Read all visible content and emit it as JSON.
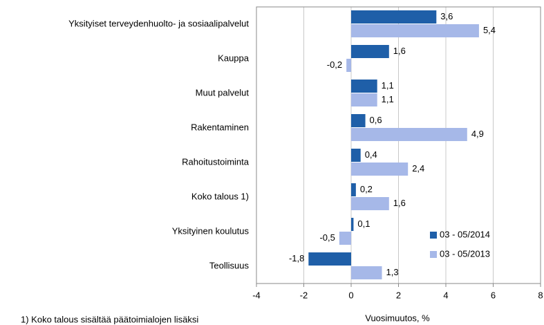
{
  "chart_data": {
    "type": "hbar",
    "categories": [
      "Yksityiset terveydenhuolto- ja sosiaalipalvelut",
      "Kauppa",
      "Muut palvelut",
      "Rakentaminen",
      "Rahoitustoiminta",
      "Koko talous 1)",
      "Yksityinen koulutus",
      "Teollisuus"
    ],
    "series": [
      {
        "name": "03 - 05/2014",
        "color": "#1f5fa8",
        "values": [
          3.6,
          1.6,
          1.1,
          0.6,
          0.4,
          0.2,
          0.1,
          -1.8
        ],
        "value_labels": [
          "3,6",
          "1,6",
          "1,1",
          "0,6",
          "0,4",
          "0,2",
          "0,1",
          "-1,8"
        ]
      },
      {
        "name": "03 - 05/2013",
        "color": "#a6b8e8",
        "values": [
          5.4,
          -0.2,
          1.1,
          4.9,
          2.4,
          1.6,
          -0.5,
          1.3
        ],
        "value_labels": [
          "5,4",
          "-0,2",
          "1,1",
          "4,9",
          "2,4",
          "1,6",
          "-0,5",
          "1,3"
        ]
      }
    ],
    "xlabel": "Vuosimuutos, %",
    "xlim": [
      -4,
      8
    ],
    "xticks": [
      -4,
      -2,
      0,
      2,
      4,
      6,
      8
    ],
    "grid": true,
    "footnote": "1) Koko talous sisältää päätoimialojen lisäksi"
  }
}
